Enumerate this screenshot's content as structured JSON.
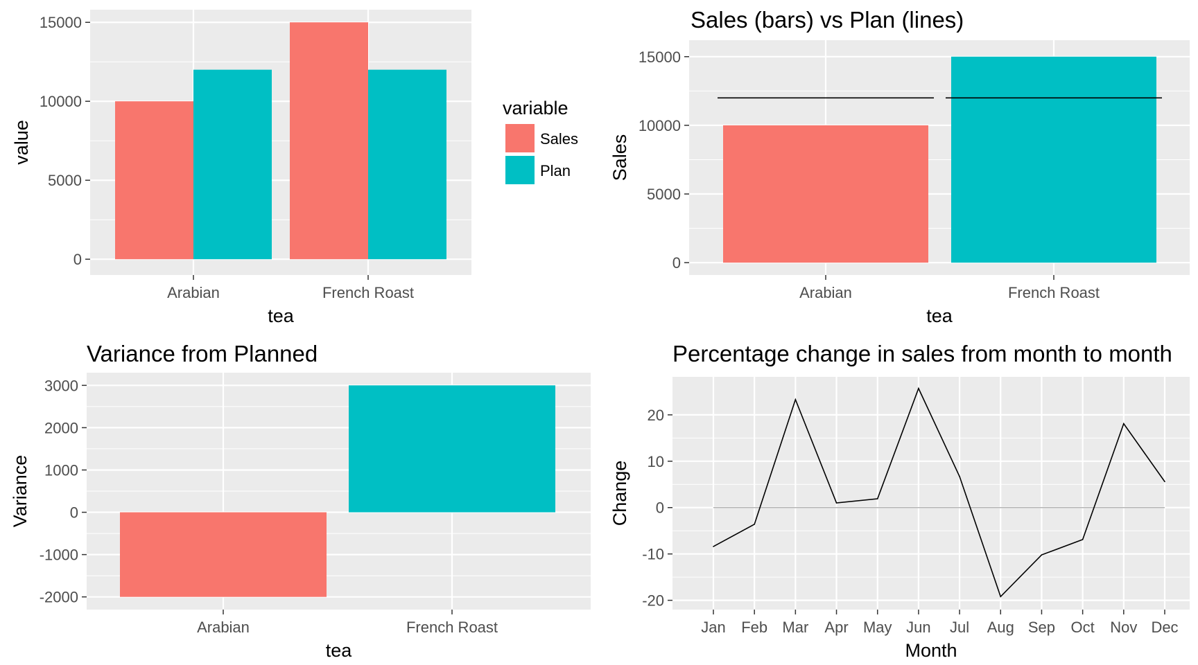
{
  "colors": {
    "sales": "#F8766D",
    "plan": "#00BFC4",
    "panel": "#EBEBEB",
    "grid": "#FFFFFF",
    "line": "#000000",
    "zero_line": "#B3B3B3"
  },
  "chart_data": [
    {
      "id": "p1",
      "type": "bar",
      "title": "",
      "xlabel": "tea",
      "ylabel": "value",
      "categories": [
        "Arabian",
        "French Roast"
      ],
      "series": [
        {
          "name": "Sales",
          "values": [
            10000,
            15000
          ]
        },
        {
          "name": "Plan",
          "values": [
            12000,
            12000
          ]
        }
      ],
      "yticks": [
        0,
        5000,
        10000,
        15000
      ],
      "ytick_labels": [
        "0",
        "5000",
        "10000",
        "15000"
      ],
      "legend": {
        "title": "variable",
        "position": "right",
        "entries": [
          "Sales",
          "Plan"
        ]
      },
      "grid": true
    },
    {
      "id": "p2",
      "type": "bar",
      "title": "Sales (bars) vs Plan (lines)",
      "xlabel": "tea",
      "ylabel": "Sales",
      "categories": [
        "Arabian",
        "French Roast"
      ],
      "bars": [
        10000,
        15000
      ],
      "plan_lines": [
        12000,
        12000
      ],
      "yticks": [
        0,
        5000,
        10000,
        15000
      ],
      "ytick_labels": [
        "0",
        "5000",
        "10000",
        "15000"
      ],
      "grid": true
    },
    {
      "id": "p3",
      "type": "bar",
      "title": "Variance from Planned",
      "xlabel": "tea",
      "ylabel": "Variance",
      "categories": [
        "Arabian",
        "French Roast"
      ],
      "values": [
        -2000,
        3000
      ],
      "yticks": [
        -2000,
        -1000,
        0,
        1000,
        2000,
        3000
      ],
      "ytick_labels": [
        "-2000",
        "-1000",
        "0",
        "1000",
        "2000",
        "3000"
      ],
      "grid": true
    },
    {
      "id": "p4",
      "type": "line",
      "title": "Percentage change in sales from month to month",
      "xlabel": "Month",
      "ylabel": "Change",
      "x": [
        "Jan",
        "Feb",
        "Mar",
        "Apr",
        "May",
        "Jun",
        "Jul",
        "Aug",
        "Sep",
        "Oct",
        "Nov",
        "Dec"
      ],
      "values": [
        -8.4,
        -3.6,
        23.3,
        1.0,
        1.9,
        25.7,
        6.7,
        -19.2,
        -10.2,
        -6.9,
        18.1,
        5.6
      ],
      "yticks": [
        -20,
        -10,
        0,
        10,
        20
      ],
      "ytick_labels": [
        "-20",
        "-10",
        "0",
        "10",
        "20"
      ],
      "reference_line": 0,
      "grid": true
    }
  ]
}
